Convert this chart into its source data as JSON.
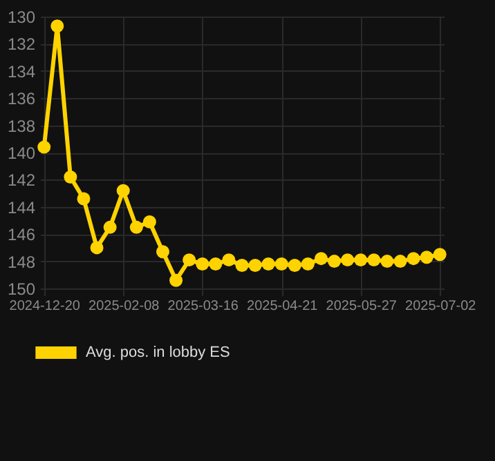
{
  "chart_data": {
    "type": "line",
    "categories": [
      "2024-12-20",
      null,
      null,
      null,
      null,
      null,
      "2025-02-08",
      null,
      null,
      null,
      null,
      null,
      "2025-03-16",
      null,
      null,
      null,
      null,
      null,
      "2025-04-21",
      null,
      null,
      null,
      null,
      null,
      "2025-05-27",
      null,
      null,
      null,
      null,
      null,
      "2025-07-02"
    ],
    "series": [
      {
        "name": "Avg. pos. in lobby ES",
        "color": "#ffd300",
        "values": [
          139.6,
          130.7,
          141.8,
          143.4,
          147.0,
          145.5,
          142.8,
          145.5,
          145.1,
          147.3,
          149.4,
          147.9,
          148.2,
          148.2,
          147.9,
          148.3,
          148.3,
          148.2,
          148.2,
          148.3,
          148.2,
          147.8,
          148.0,
          147.9,
          147.9,
          147.9,
          148.0,
          148.0,
          147.8,
          147.7,
          147.5
        ]
      }
    ],
    "ylim": [
      150,
      130
    ],
    "yticks": [
      130,
      132,
      134,
      136,
      138,
      140,
      142,
      144,
      146,
      148,
      150
    ],
    "grid": true,
    "legend": "bottom",
    "marker": "circle",
    "line_style": "solid"
  }
}
